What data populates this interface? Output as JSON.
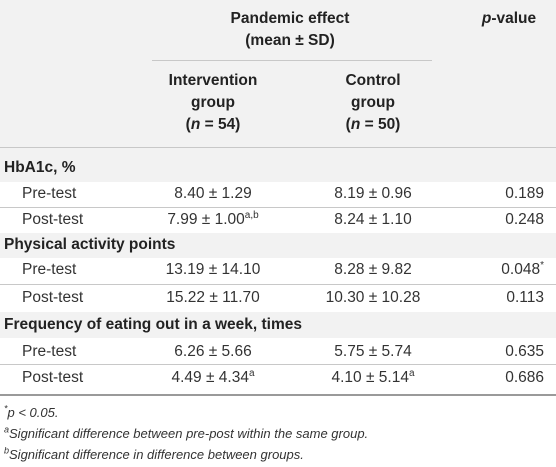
{
  "header": {
    "pandemic_effect": "Pandemic effect",
    "mean_sd": "(mean ± SD)",
    "p_value": "p",
    "p_value_suffix": "-value",
    "intervention_line1": "Intervention",
    "intervention_line2": "group",
    "intervention_n_label": "n",
    "intervention_n_value": " = 54)",
    "control_line1": "Control",
    "control_line2": "group",
    "control_n_label": "n",
    "control_n_value": " = 50)",
    "paren_open": "("
  },
  "sections": [
    {
      "title": "HbA1c, %",
      "rows": [
        {
          "label": "Pre-test",
          "intervention": "8.40 ± 1.29",
          "intervention_sup": "",
          "control": "8.19 ± 0.96",
          "control_sup": "",
          "p": "0.189",
          "p_sup": ""
        },
        {
          "label": "Post-test",
          "intervention": "7.99 ± 1.00",
          "intervention_sup": "a,b",
          "control": "8.24 ± 1.10",
          "control_sup": "",
          "p": "0.248",
          "p_sup": ""
        }
      ]
    },
    {
      "title": "Physical activity points",
      "rows": [
        {
          "label": "Pre-test",
          "intervention": "13.19 ± 14.10",
          "intervention_sup": "",
          "control": "8.28 ± 9.82",
          "control_sup": "",
          "p": "0.048",
          "p_sup": "*"
        },
        {
          "label": "Post-test",
          "intervention": "15.22 ± 11.70",
          "intervention_sup": "",
          "control": "10.30 ± 10.28",
          "control_sup": "",
          "p": "0.113",
          "p_sup": ""
        }
      ]
    },
    {
      "title": "Frequency of eating out in a week, times",
      "rows": [
        {
          "label": "Pre-test",
          "intervention": "6.26 ± 5.66",
          "intervention_sup": "",
          "control": "5.75 ± 5.74",
          "control_sup": "",
          "p": "0.635",
          "p_sup": ""
        },
        {
          "label": "Post-test",
          "intervention": "4.49 ± 4.34",
          "intervention_sup": "a",
          "control": "4.10 ± 5.14",
          "control_sup": "a",
          "p": "0.686",
          "p_sup": ""
        }
      ]
    }
  ],
  "footnotes": [
    {
      "sup": "*",
      "text": "p < 0.05."
    },
    {
      "sup": "a",
      "text": "Significant difference between pre-post within the same group."
    },
    {
      "sup": "b",
      "text": "Significant difference in difference between groups."
    }
  ]
}
